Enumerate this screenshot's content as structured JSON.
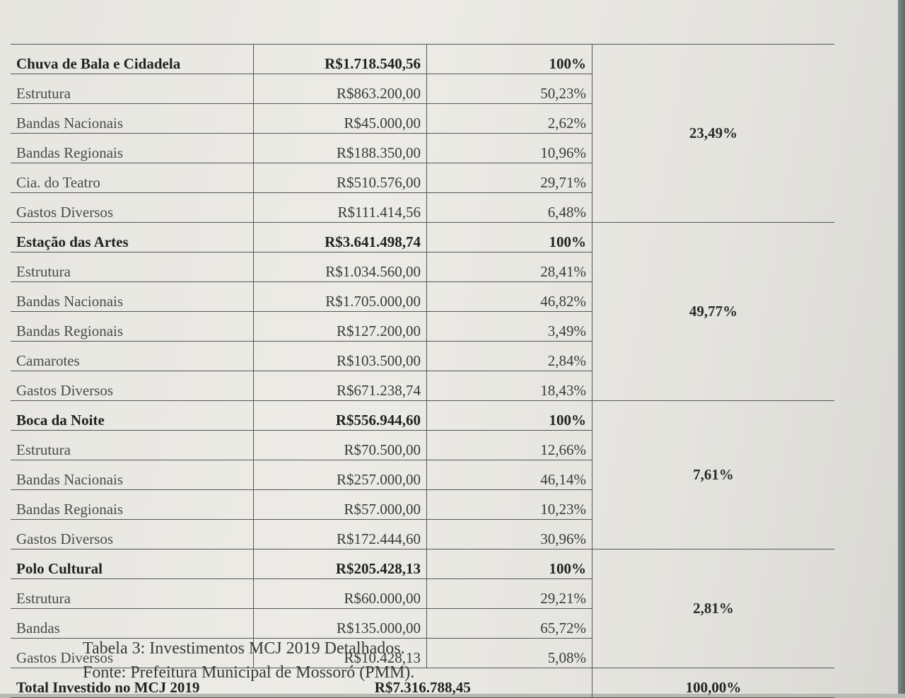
{
  "groups": [
    {
      "name": "Chuva de Bala e Cidadela",
      "total": "R$1.718.540,56",
      "pct": "100%",
      "share": "23,49%",
      "items": [
        {
          "label": "Estrutura",
          "value": "R$863.200,00",
          "pct": "50,23%"
        },
        {
          "label": "Bandas Nacionais",
          "value": "R$45.000,00",
          "pct": "2,62%"
        },
        {
          "label": "Bandas Regionais",
          "value": "R$188.350,00",
          "pct": "10,96%"
        },
        {
          "label": "Cia. do Teatro",
          "value": "R$510.576,00",
          "pct": "29,71%"
        },
        {
          "label": "Gastos Diversos",
          "value": "R$111.414,56",
          "pct": "6,48%"
        }
      ]
    },
    {
      "name": "Estação das Artes",
      "total": "R$3.641.498,74",
      "pct": "100%",
      "share": "49,77%",
      "items": [
        {
          "label": "Estrutura",
          "value": "R$1.034.560,00",
          "pct": "28,41%"
        },
        {
          "label": "Bandas Nacionais",
          "value": "R$1.705.000,00",
          "pct": "46,82%"
        },
        {
          "label": "Bandas Regionais",
          "value": "R$127.200,00",
          "pct": "3,49%"
        },
        {
          "label": "Camarotes",
          "value": "R$103.500,00",
          "pct": "2,84%"
        },
        {
          "label": "Gastos Diversos",
          "value": "R$671.238,74",
          "pct": "18,43%"
        }
      ]
    },
    {
      "name": "Boca da Noite",
      "total": "R$556.944,60",
      "pct": "100%",
      "share": "7,61%",
      "items": [
        {
          "label": "Estrutura",
          "value": "R$70.500,00",
          "pct": "12,66%"
        },
        {
          "label": "Bandas Nacionais",
          "value": "R$257.000,00",
          "pct": "46,14%"
        },
        {
          "label": "Bandas Regionais",
          "value": "R$57.000,00",
          "pct": "10,23%"
        },
        {
          "label": "Gastos Diversos",
          "value": "R$172.444,60",
          "pct": "30,96%"
        }
      ]
    },
    {
      "name": "Polo Cultural",
      "total": "R$205.428,13",
      "pct": "100%",
      "share": "2,81%",
      "items": [
        {
          "label": "Estrutura",
          "value": "R$60.000,00",
          "pct": "29,21%"
        },
        {
          "label": "Bandas",
          "value": "R$135.000,00",
          "pct": "65,72%"
        },
        {
          "label": "Gastos Diversos",
          "value": "R$10.428,13",
          "pct": "5,08%"
        }
      ]
    }
  ],
  "total": {
    "label": "Total Investido no MCJ 2019",
    "value": "R$7.316.788,45",
    "share": "100,00%"
  },
  "caption": {
    "line1": "Tabela 3: Investimentos MCJ 2019 Detalhados.",
    "line2": "Fonte: Prefeitura Municipal de Mossoró (PMM)."
  }
}
